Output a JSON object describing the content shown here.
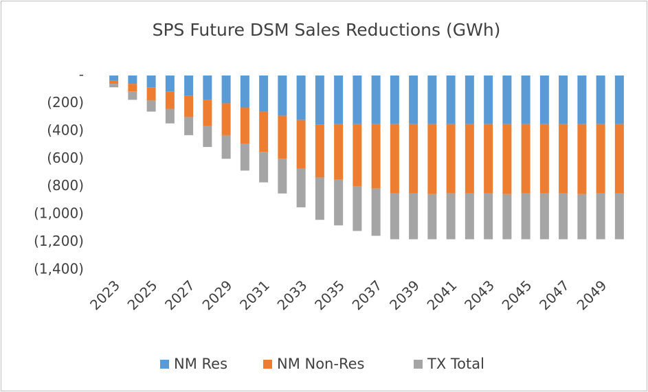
{
  "chart_data": {
    "type": "stacked_bar",
    "title": "SPS Future DSM Sales Reductions (GWh)",
    "categories": [
      "2023",
      null,
      "2025",
      null,
      "2027",
      null,
      "2029",
      null,
      "2031",
      null,
      "2033",
      null,
      "2035",
      null,
      "2037",
      null,
      "2039",
      null,
      "2041",
      null,
      "2043",
      null,
      "2045",
      null,
      "2047",
      null,
      "2049",
      null
    ],
    "series": [
      {
        "name": "NM Res",
        "color": "#5b9bd5",
        "values": [
          -35,
          -60,
          -85,
          -115,
          -145,
          -175,
          -200,
          -230,
          -260,
          -290,
          -320,
          -355,
          -350,
          -350,
          -350,
          -350,
          -350,
          -350,
          -350,
          -350,
          -350,
          -350,
          -350,
          -350,
          -350,
          -350,
          -350,
          -350
        ]
      },
      {
        "name": "NM Non-Res",
        "color": "#ed7d31",
        "values": [
          -25,
          -55,
          -95,
          -125,
          -155,
          -190,
          -230,
          -260,
          -290,
          -310,
          -350,
          -380,
          -400,
          -450,
          -465,
          -500,
          -500,
          -505,
          -500,
          -500,
          -500,
          -505,
          -500,
          -500,
          -500,
          -505,
          -500,
          -500
        ]
      },
      {
        "name": "TX Total",
        "color": "#a5a5a5",
        "values": [
          -25,
          -60,
          -80,
          -105,
          -130,
          -150,
          -170,
          -195,
          -220,
          -250,
          -280,
          -305,
          -330,
          -320,
          -340,
          -330,
          -330,
          -325,
          -330,
          -330,
          -330,
          -325,
          -330,
          -330,
          -330,
          -325,
          -330,
          -330
        ]
      }
    ],
    "ylim": [
      -1400,
      0
    ],
    "yticks": [
      {
        "value": 0,
        "label": "-"
      },
      {
        "value": -200,
        "label": "(200)"
      },
      {
        "value": -400,
        "label": "(400)"
      },
      {
        "value": -600,
        "label": "(600)"
      },
      {
        "value": -800,
        "label": "(800)"
      },
      {
        "value": -1000,
        "label": "(1,000)"
      },
      {
        "value": -1200,
        "label": "(1,200)"
      },
      {
        "value": -1400,
        "label": "(1,400)"
      }
    ],
    "grid": false,
    "legend": "bottom"
  }
}
